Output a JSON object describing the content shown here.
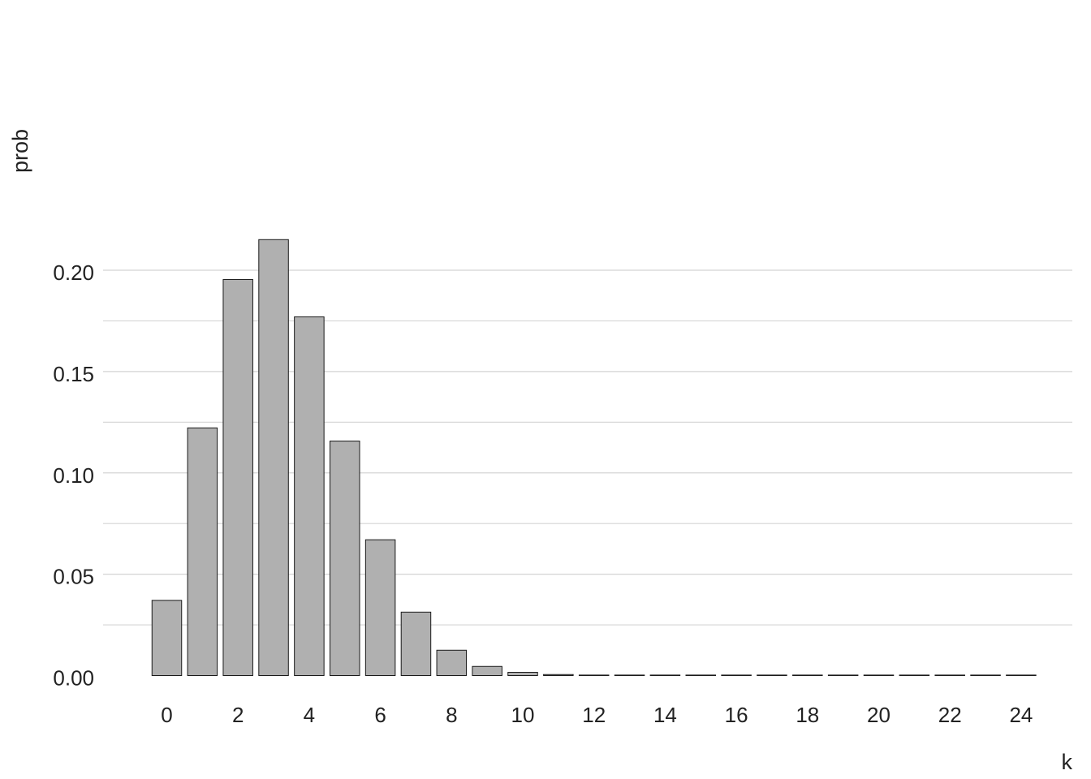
{
  "chart_data": {
    "type": "bar",
    "xlabel": "k",
    "ylabel": "prob",
    "categories": [
      0,
      1,
      2,
      3,
      4,
      5,
      6,
      7,
      8,
      9,
      10,
      11,
      12,
      13,
      14,
      15,
      16,
      17,
      18,
      19,
      20,
      21,
      22,
      23,
      24
    ],
    "values": [
      0.0371,
      0.1222,
      0.1954,
      0.2151,
      0.177,
      0.1157,
      0.067,
      0.0313,
      0.0125,
      0.0045,
      0.0016,
      0.0005,
      0.0001,
      3e-05,
      1e-05,
      0,
      0,
      0,
      0,
      0,
      0,
      0,
      0,
      0,
      0
    ],
    "x_tick_labels": [
      "0",
      "2",
      "4",
      "6",
      "8",
      "10",
      "12",
      "14",
      "16",
      "18",
      "20",
      "22",
      "24"
    ],
    "y_tick_labels": [
      "0.00",
      "0.05",
      "0.10",
      "0.15",
      "0.20"
    ],
    "y_ticks": [
      0,
      0.05,
      0.1,
      0.15,
      0.2
    ],
    "ylim": [
      0,
      0.22
    ],
    "grid": "horizontal",
    "bar_fill": "#b0b0b0",
    "bar_outline": "#1a1a1a",
    "grid_color": "#d4d4d4"
  }
}
